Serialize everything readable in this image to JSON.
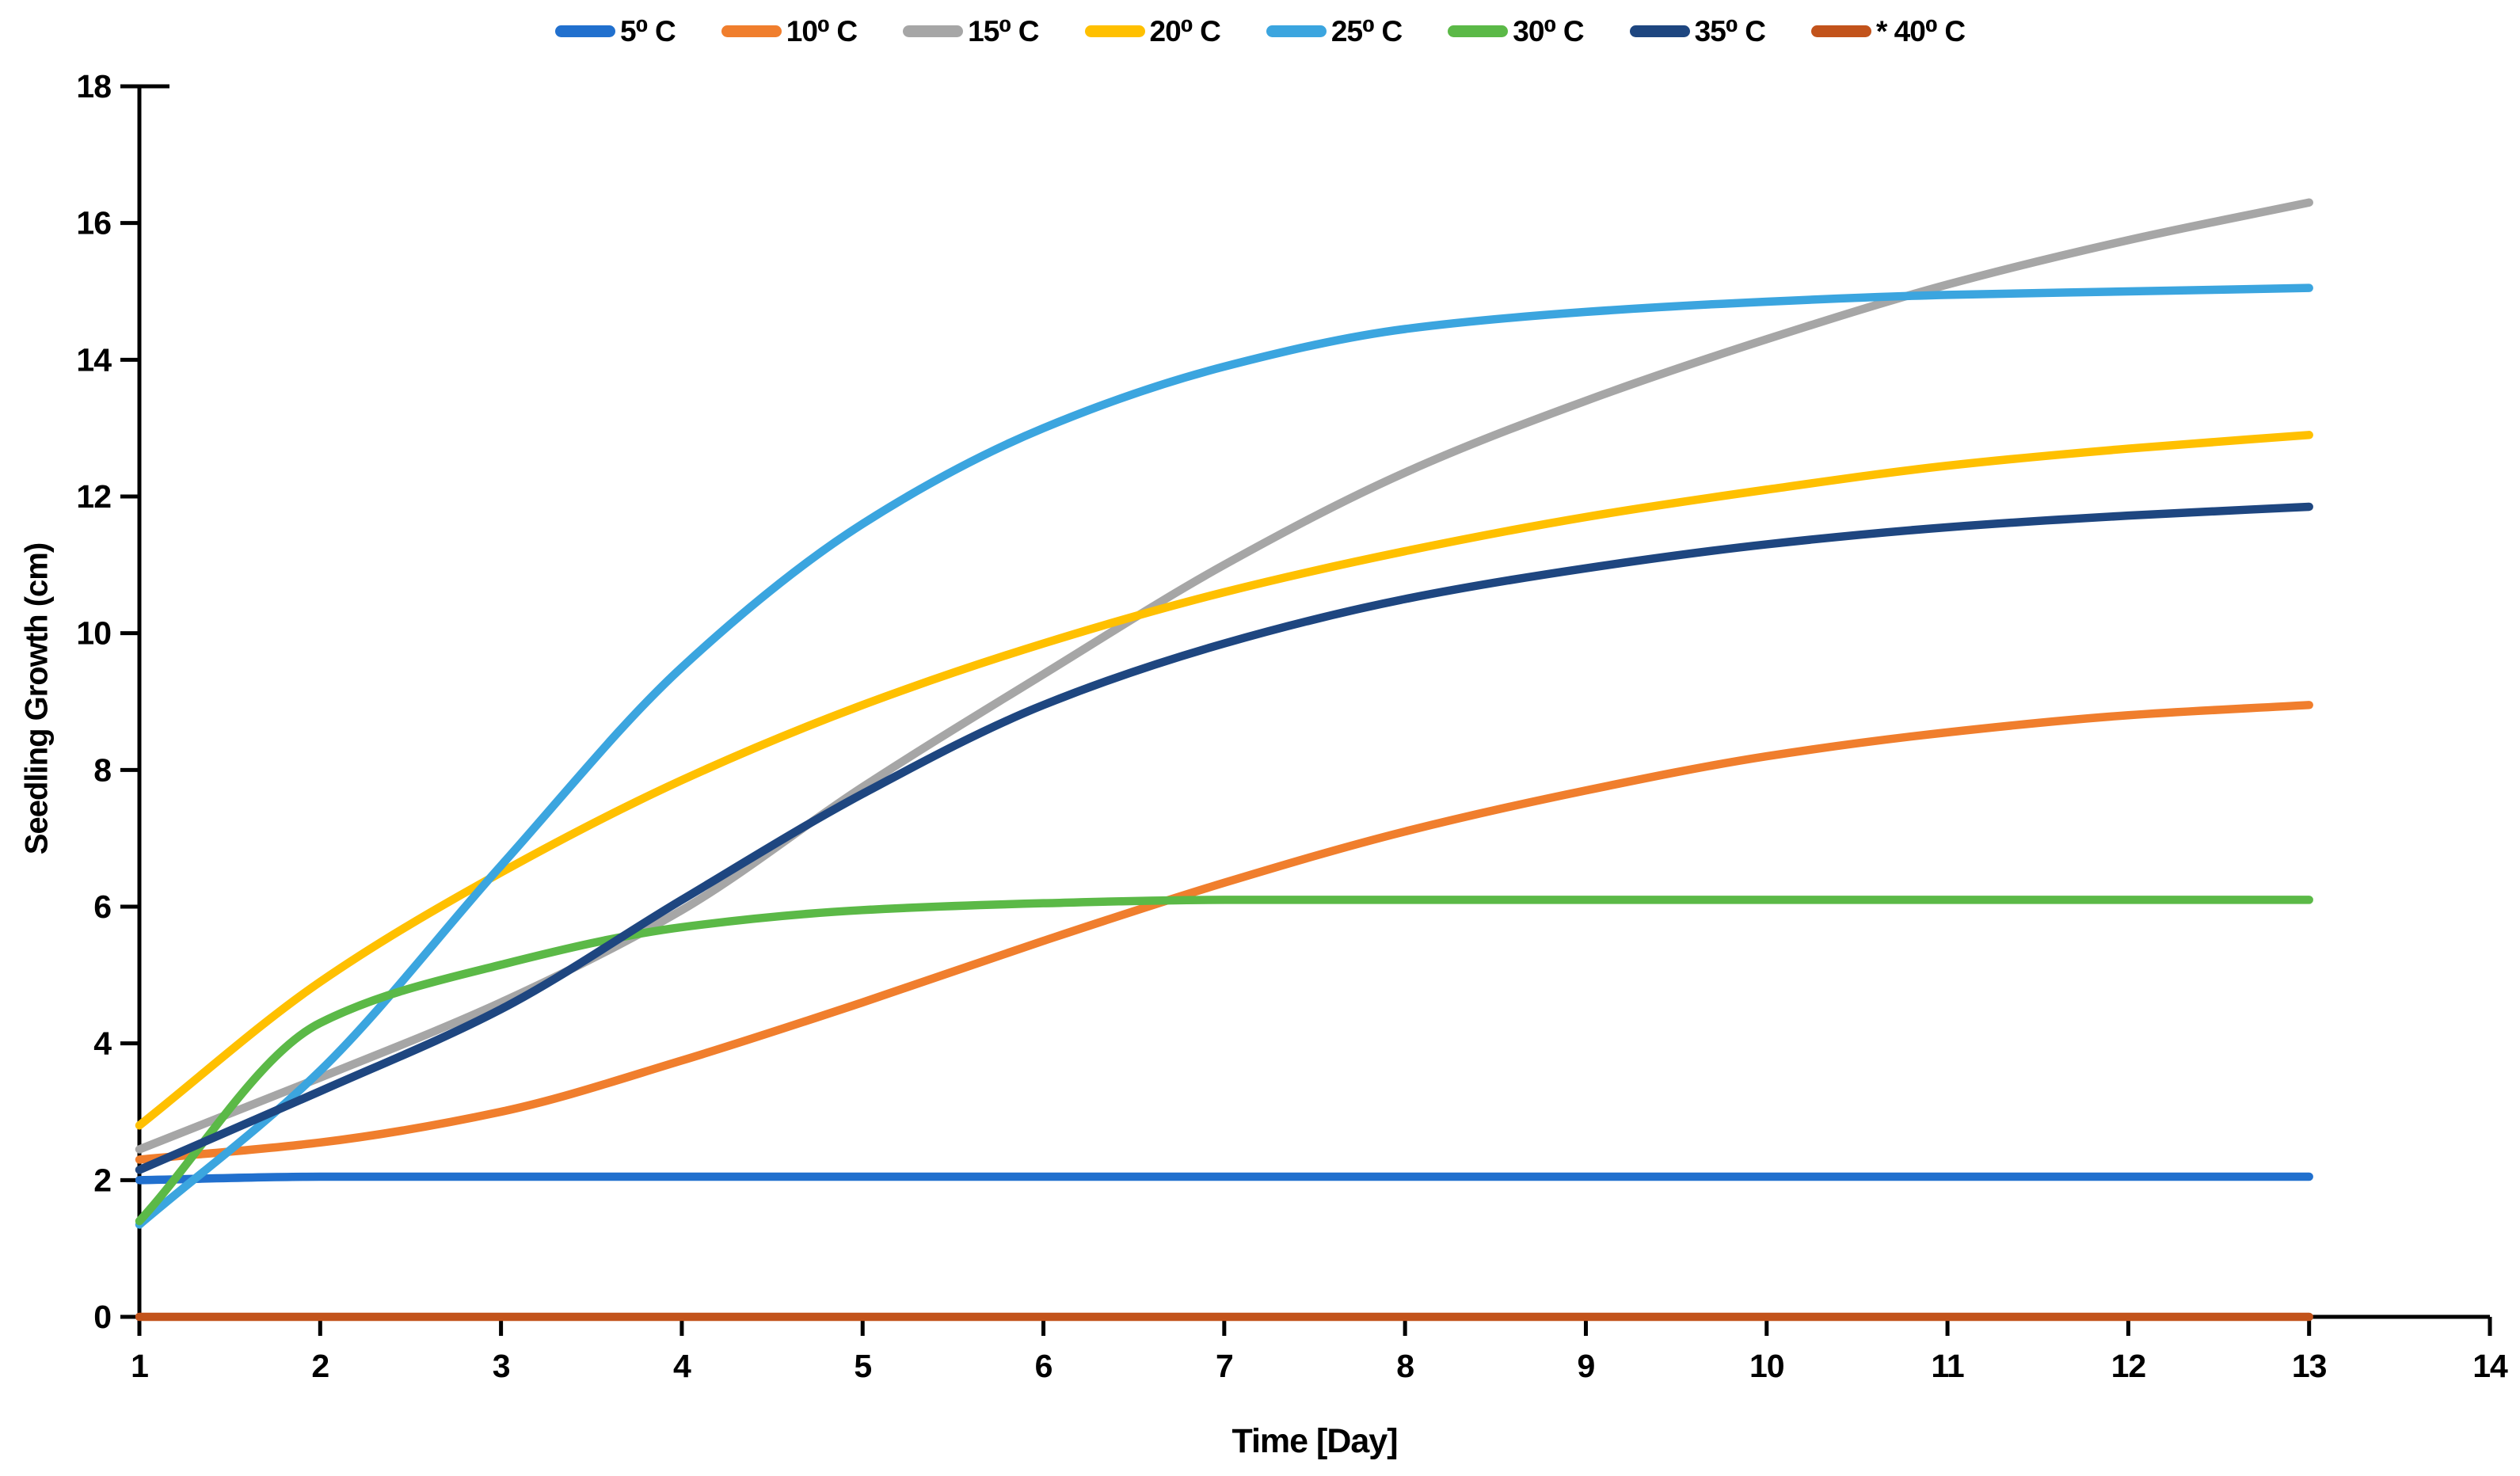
{
  "chart_data": {
    "type": "line",
    "title": "",
    "xlabel": "Time [Day]",
    "ylabel": "Seedling Growth (cm)",
    "x": [
      1,
      2,
      3,
      4,
      5,
      6,
      7,
      8,
      9,
      10,
      11,
      12,
      13
    ],
    "xlim": [
      1,
      14
    ],
    "ylim": [
      0,
      18
    ],
    "x_ticks": [
      1,
      2,
      3,
      4,
      5,
      6,
      7,
      8,
      9,
      10,
      11,
      12,
      13,
      14
    ],
    "y_ticks": [
      0,
      2,
      4,
      6,
      8,
      10,
      12,
      14,
      16,
      18
    ],
    "grid": false,
    "legend_position": "top-center",
    "axis_color": "#000000",
    "series": [
      {
        "name": "5⁰ C",
        "color": "#2170CE",
        "values": [
          2.0,
          2.05,
          2.05,
          2.05,
          2.05,
          2.05,
          2.05,
          2.05,
          2.05,
          2.05,
          2.05,
          2.05,
          2.05
        ]
      },
      {
        "name": "10⁰ C",
        "color": "#F07E2D",
        "values": [
          2.3,
          2.55,
          3.0,
          3.75,
          4.6,
          5.5,
          6.35,
          7.1,
          7.7,
          8.2,
          8.55,
          8.8,
          8.95
        ]
      },
      {
        "name": "15⁰ C",
        "color": "#A6A6A6",
        "values": [
          2.45,
          3.5,
          4.6,
          5.95,
          7.75,
          9.4,
          11.0,
          12.35,
          13.4,
          14.3,
          15.1,
          15.75,
          16.3
        ]
      },
      {
        "name": "20⁰ C",
        "color": "#FFC000",
        "values": [
          2.8,
          4.9,
          6.5,
          7.85,
          8.95,
          9.85,
          10.6,
          11.2,
          11.7,
          12.1,
          12.45,
          12.7,
          12.9
        ]
      },
      {
        "name": "25⁰ C",
        "color": "#3BA5DF",
        "values": [
          1.35,
          3.6,
          6.6,
          9.5,
          11.6,
          13.0,
          13.9,
          14.45,
          14.7,
          14.85,
          14.95,
          15.0,
          15.05
        ]
      },
      {
        "name": "30⁰ C",
        "color": "#5BB947",
        "values": [
          1.4,
          4.3,
          5.15,
          5.7,
          5.95,
          6.05,
          6.1,
          6.1,
          6.1,
          6.1,
          6.1,
          6.1,
          6.1
        ]
      },
      {
        "name": "35⁰ C",
        "color": "#1E4680",
        "values": [
          2.15,
          3.3,
          4.5,
          6.1,
          7.65,
          8.95,
          9.85,
          10.5,
          10.95,
          11.3,
          11.55,
          11.72,
          11.85
        ]
      },
      {
        "name": "* 40⁰ C",
        "color": "#C2531B",
        "values": [
          0,
          0,
          0,
          0,
          0,
          0,
          0,
          0,
          0,
          0,
          0,
          0,
          0
        ]
      }
    ]
  }
}
